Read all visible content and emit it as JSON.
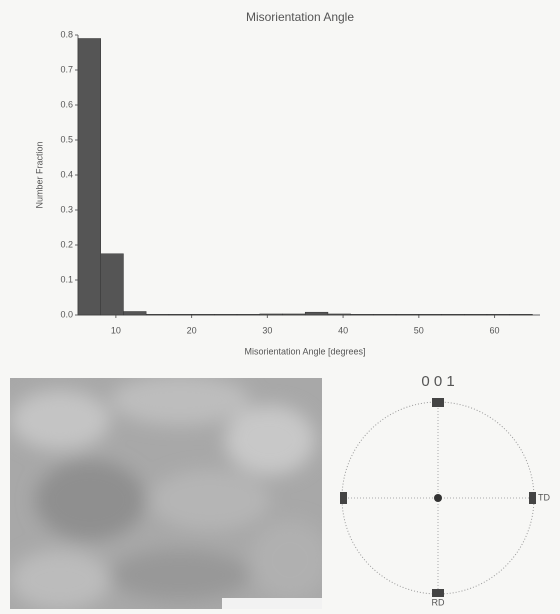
{
  "chart_data": {
    "type": "histogram",
    "title": "Misorientation Angle",
    "x_label": "Misorientation Angle [degrees]",
    "y_label": "Number Fraction",
    "bins": [
      5,
      8,
      11,
      14,
      17,
      20,
      23,
      26,
      29,
      32,
      35,
      38,
      41,
      44,
      47,
      50,
      53,
      56,
      59,
      62,
      65
    ],
    "values": [
      0.79,
      0.175,
      0.01,
      0.002,
      0.002,
      0.002,
      0.002,
      0.002,
      0.003,
      0.003,
      0.008,
      0.003,
      0.002,
      0.002,
      0.002,
      0.002,
      0.002,
      0.002,
      0.002,
      0.002
    ],
    "color": "#555555",
    "xlim": [
      5,
      66
    ],
    "xticks": [
      10,
      20,
      30,
      40,
      50,
      60
    ],
    "ylim": [
      0,
      0.8
    ],
    "yticks": [
      {
        "value": 0,
        "label": "0.0"
      },
      0.1,
      0.2,
      0.3,
      0.4,
      0.5,
      0.6,
      0.7,
      0.8
    ],
    "grid": false
  },
  "pole_figure": {
    "title": "0 0 1",
    "labels": [
      "TD",
      "RD"
    ]
  }
}
